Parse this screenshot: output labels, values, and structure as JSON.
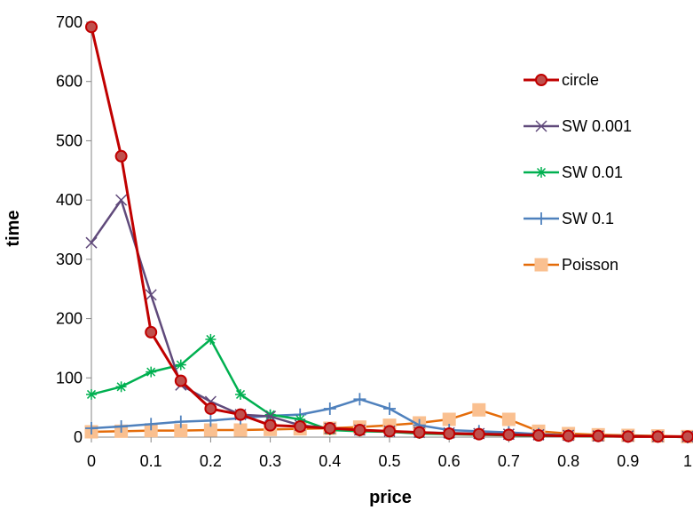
{
  "chart_data": {
    "type": "line",
    "title": "",
    "xlabel": "price",
    "ylabel": "time",
    "xlim": [
      0,
      1
    ],
    "ylim": [
      0,
      700
    ],
    "x_ticks": [
      "0",
      "0.1",
      "0.2",
      "0.3",
      "0.4",
      "0.5",
      "0.6",
      "0.7",
      "0.8",
      "0.9",
      "1"
    ],
    "y_ticks": [
      "0",
      "100",
      "200",
      "300",
      "400",
      "500",
      "600",
      "700"
    ],
    "grid": false,
    "legend_position": "right",
    "x": [
      0,
      0.05,
      0.1,
      0.15,
      0.2,
      0.25,
      0.3,
      0.35,
      0.4,
      0.45,
      0.5,
      0.55,
      0.6,
      0.65,
      0.7,
      0.75,
      0.8,
      0.85,
      0.9,
      0.95,
      1
    ],
    "series": [
      {
        "name": "circle",
        "color": "#C00000",
        "fill": "#C0504D",
        "marker": "circle",
        "values": [
          692,
          474,
          177,
          95,
          48,
          38,
          20,
          18,
          15,
          12,
          10,
          8,
          6,
          5,
          4,
          3,
          2,
          2,
          1,
          1,
          1
        ]
      },
      {
        "name": "SW 0.001",
        "color": "#604A7B",
        "marker": "x",
        "values": [
          328,
          400,
          240,
          88,
          60,
          38,
          35,
          20,
          15,
          12,
          10,
          8,
          7,
          6,
          5,
          4,
          3,
          2,
          2,
          1,
          1
        ]
      },
      {
        "name": "SW 0.01",
        "color": "#00B050",
        "marker": "star",
        "values": [
          72,
          85,
          110,
          122,
          165,
          72,
          38,
          30,
          12,
          10,
          9,
          6,
          5,
          4,
          3,
          2,
          2,
          1,
          1,
          1,
          0
        ]
      },
      {
        "name": "SW 0.1",
        "color": "#4F81BD",
        "marker": "plus",
        "values": [
          15,
          18,
          22,
          26,
          28,
          32,
          36,
          38,
          48,
          64,
          48,
          20,
          12,
          10,
          8,
          5,
          3,
          2,
          1,
          1,
          0
        ]
      },
      {
        "name": "Poisson",
        "color": "#E46C0A",
        "fill": "#FAC090",
        "marker": "square",
        "values": [
          9,
          10,
          11,
          11,
          12,
          12,
          13,
          14,
          15,
          17,
          20,
          24,
          30,
          46,
          30,
          10,
          6,
          4,
          3,
          2,
          1
        ]
      }
    ]
  }
}
